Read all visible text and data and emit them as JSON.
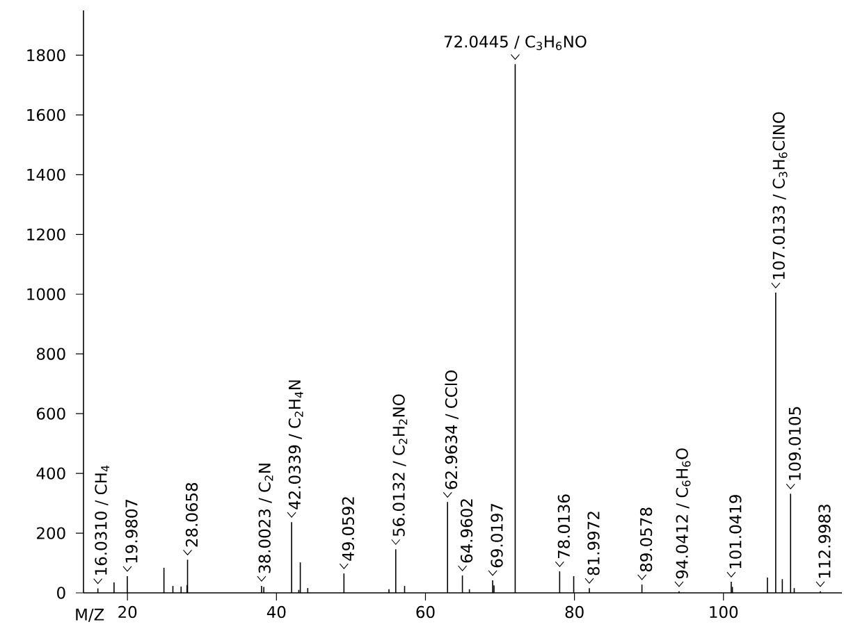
{
  "chart_data": {
    "type": "bar",
    "xlabel": "M/Z",
    "color": "#000000",
    "x": [
      16.031,
      18.2,
      19.9807,
      24.9,
      26.1,
      27.2,
      28.0,
      28.0658,
      38.0023,
      38.3,
      42.0339,
      43.0,
      43.2,
      44.2,
      49.0592,
      55.1,
      56.0132,
      57.2,
      62.9634,
      64.9602,
      65.9,
      69.0197,
      69.2,
      72.0445,
      78.0136,
      79.9,
      81.9972,
      89.0578,
      94.0412,
      101.0419,
      101.2,
      105.9,
      107.0133,
      107.9,
      109.0105,
      109.5,
      112.9983
    ],
    "values": [
      15,
      35,
      56,
      84,
      23,
      21,
      26,
      111,
      23,
      20,
      237,
      10,
      102,
      16,
      65,
      12,
      146,
      23,
      304,
      58,
      12,
      42,
      25,
      1770,
      72,
      56,
      16,
      28,
      5,
      37,
      20,
      51,
      1005,
      46,
      332,
      16,
      5
    ],
    "xlim": [
      14.1,
      115.9
    ],
    "ylim": [
      0,
      1950
    ],
    "xticks": [
      20,
      40,
      60,
      80,
      100
    ],
    "yticks": [
      0,
      200,
      400,
      600,
      800,
      1000,
      1200,
      1400,
      1600,
      1800
    ],
    "annotations": [
      {
        "text": "16.0310 / CH$_{4}$",
        "x": 16.031,
        "y": 15
      },
      {
        "text": "19.9807",
        "x": 19.9807,
        "y": 56
      },
      {
        "text": "28.0658",
        "x": 28.0658,
        "y": 111
      },
      {
        "text": "38.0023 / C$_{2}$N",
        "x": 38.0023,
        "y": 23
      },
      {
        "text": "42.0339 / C$_{2}$H$_{4}$N",
        "x": 42.0339,
        "y": 237
      },
      {
        "text": "49.0592",
        "x": 49.0592,
        "y": 65
      },
      {
        "text": "56.0132 / C$_{2}$H$_{2}$NO",
        "x": 56.0132,
        "y": 146
      },
      {
        "text": "62.9634 / CClO",
        "x": 62.9634,
        "y": 304
      },
      {
        "text": "64.9602",
        "x": 64.9602,
        "y": 58
      },
      {
        "text": "69.0197",
        "x": 69.0197,
        "y": 42
      },
      {
        "text": "72.0445 / C$_{3}$H$_{6}$NO",
        "x": 72.0445,
        "y": 1770
      },
      {
        "text": "78.0136",
        "x": 78.0136,
        "y": 72
      },
      {
        "text": "81.9972",
        "x": 81.9972,
        "y": 16
      },
      {
        "text": "89.0578",
        "x": 89.0578,
        "y": 28
      },
      {
        "text": "94.0412 / C$_{6}$H$_{6}$O",
        "x": 94.0412,
        "y": 5
      },
      {
        "text": "101.0419",
        "x": 101.0419,
        "y": 37
      },
      {
        "text": "107.0133 / C$_{3}$H$_{6}$ClNO",
        "x": 107.0133,
        "y": 1005
      },
      {
        "text": "109.0105",
        "x": 109.0105,
        "y": 332
      },
      {
        "text": "112.9983",
        "x": 112.9983,
        "y": 5
      }
    ]
  }
}
